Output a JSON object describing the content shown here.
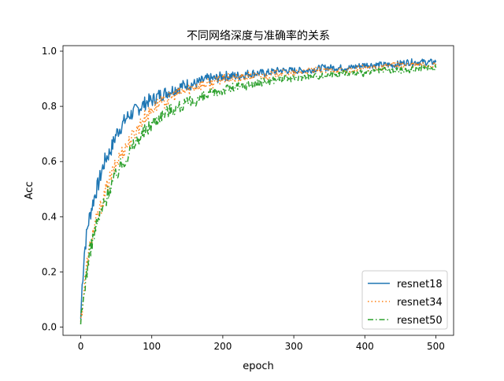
{
  "chart_data": {
    "type": "line",
    "title": "不同网络深度与准确率的关系",
    "xlabel": "epoch",
    "ylabel": "Acc",
    "xlim": [
      -25,
      525
    ],
    "ylim": [
      -0.03,
      1.02
    ],
    "x_ticks": [
      0,
      100,
      200,
      300,
      400,
      500
    ],
    "y_ticks": [
      0.0,
      0.2,
      0.4,
      0.6,
      0.8,
      1.0
    ],
    "x_tick_labels": [
      "0",
      "100",
      "200",
      "300",
      "400",
      "500"
    ],
    "y_tick_labels": [
      "0.0",
      "0.2",
      "0.4",
      "0.6",
      "0.8",
      "1.0"
    ],
    "grid": false,
    "legend_position": "lower-right",
    "series": [
      {
        "name": "resnet18",
        "color": "#1f77b4",
        "dash": "solid",
        "x": [
          0,
          2,
          5,
          10,
          15,
          20,
          25,
          30,
          35,
          40,
          45,
          50,
          55,
          60,
          65,
          70,
          75,
          80,
          85,
          90,
          95,
          100,
          110,
          120,
          130,
          140,
          150,
          160,
          170,
          180,
          190,
          200,
          220,
          240,
          260,
          280,
          300,
          320,
          340,
          360,
          380,
          400,
          420,
          440,
          460,
          480,
          500
        ],
        "y": [
          0.03,
          0.15,
          0.27,
          0.37,
          0.43,
          0.48,
          0.52,
          0.57,
          0.61,
          0.63,
          0.66,
          0.7,
          0.72,
          0.74,
          0.76,
          0.77,
          0.78,
          0.79,
          0.8,
          0.81,
          0.82,
          0.82,
          0.84,
          0.85,
          0.86,
          0.87,
          0.88,
          0.88,
          0.89,
          0.9,
          0.9,
          0.91,
          0.91,
          0.92,
          0.92,
          0.93,
          0.93,
          0.93,
          0.94,
          0.94,
          0.94,
          0.95,
          0.95,
          0.95,
          0.96,
          0.96,
          0.96
        ]
      },
      {
        "name": "resnet34",
        "color": "#ff7f0e",
        "dash": "dotted",
        "x": [
          0,
          5,
          10,
          15,
          20,
          25,
          30,
          35,
          40,
          45,
          50,
          55,
          60,
          65,
          70,
          75,
          80,
          85,
          90,
          95,
          100,
          110,
          120,
          130,
          140,
          150,
          160,
          170,
          180,
          190,
          200,
          220,
          240,
          260,
          280,
          300,
          320,
          340,
          360,
          380,
          400,
          420,
          440,
          460,
          480,
          500
        ],
        "y": [
          0.02,
          0.15,
          0.25,
          0.32,
          0.37,
          0.41,
          0.45,
          0.49,
          0.53,
          0.56,
          0.59,
          0.62,
          0.64,
          0.66,
          0.68,
          0.7,
          0.72,
          0.74,
          0.76,
          0.77,
          0.79,
          0.81,
          0.82,
          0.84,
          0.85,
          0.86,
          0.87,
          0.88,
          0.88,
          0.89,
          0.9,
          0.9,
          0.91,
          0.91,
          0.92,
          0.92,
          0.93,
          0.93,
          0.93,
          0.93,
          0.94,
          0.94,
          0.95,
          0.95,
          0.95,
          0.95
        ]
      },
      {
        "name": "resnet50",
        "color": "#2ca02c",
        "dash": "dashdot",
        "x": [
          0,
          5,
          10,
          15,
          20,
          25,
          30,
          35,
          40,
          45,
          50,
          55,
          60,
          65,
          70,
          75,
          80,
          85,
          90,
          95,
          100,
          110,
          120,
          130,
          140,
          150,
          160,
          170,
          180,
          190,
          200,
          220,
          240,
          260,
          280,
          300,
          320,
          340,
          360,
          380,
          400,
          420,
          440,
          460,
          480,
          500
        ],
        "y": [
          0.01,
          0.13,
          0.23,
          0.3,
          0.35,
          0.39,
          0.43,
          0.46,
          0.5,
          0.53,
          0.55,
          0.58,
          0.6,
          0.62,
          0.64,
          0.66,
          0.68,
          0.69,
          0.71,
          0.72,
          0.74,
          0.76,
          0.78,
          0.79,
          0.8,
          0.81,
          0.82,
          0.83,
          0.84,
          0.85,
          0.86,
          0.87,
          0.88,
          0.89,
          0.9,
          0.9,
          0.91,
          0.91,
          0.92,
          0.92,
          0.92,
          0.93,
          0.93,
          0.93,
          0.94,
          0.94
        ]
      }
    ]
  }
}
